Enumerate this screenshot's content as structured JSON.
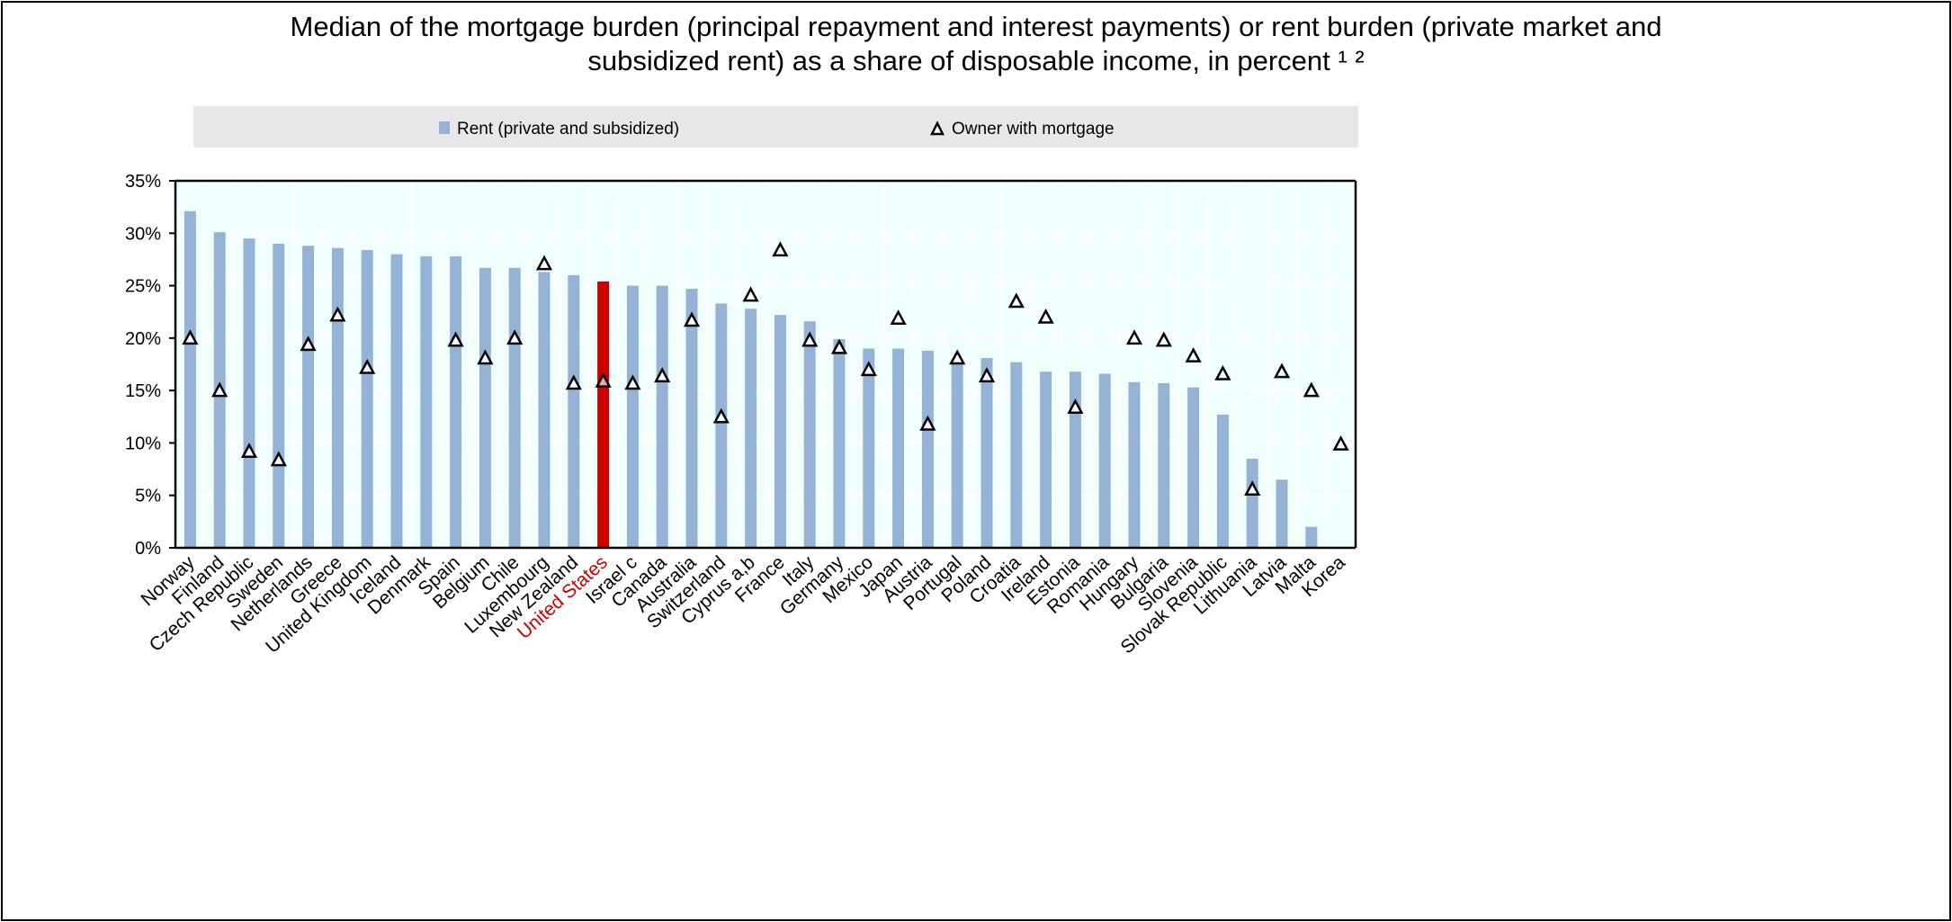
{
  "chart_data": {
    "type": "bar",
    "title_line1": "Median of the mortgage burden (principal repayment and interest payments) or rent burden (private market and",
    "title_line2": "subsidized rent) as a share of disposable income, in percent ¹ ²",
    "xlabel": "",
    "ylabel": "",
    "ylim": [
      0,
      35
    ],
    "yticks": [
      "0%",
      "5%",
      "10%",
      "15%",
      "20%",
      "25%",
      "30%",
      "35%"
    ],
    "grid": true,
    "legend_placement": "top",
    "highlight_category": "United States",
    "colors": {
      "bar": "#95b3d7",
      "highlight": "#cc0000",
      "plot_bg": "#f2ffff",
      "legend_bg": "#e8e8e8",
      "highlight_label": "#cc0000"
    },
    "categories": [
      "Norway",
      "Finland",
      "Czech Republic",
      "Sweden",
      "Netherlands",
      "Greece",
      "United Kingdom",
      "Iceland",
      "Denmark",
      "Spain",
      "Belgium",
      "Chile",
      "Luxembourg",
      "New Zealand",
      "United States",
      "Israel c",
      "Canada",
      "Australia",
      "Switzerland",
      "Cyprus a,b",
      "France",
      "Italy",
      "Germany",
      "Mexico",
      "Japan",
      "Austria",
      "Portugal",
      "Poland",
      "Croatia",
      "Ireland",
      "Estonia",
      "Romania",
      "Hungary",
      "Bulgaria",
      "Slovenia",
      "Slovak Republic",
      "Lithuania",
      "Latvia",
      "Malta",
      "Korea"
    ],
    "series": [
      {
        "name": "Rent (private and subsidized)",
        "marker": "bar",
        "values": [
          32.1,
          30.1,
          29.5,
          29.0,
          28.8,
          28.6,
          28.4,
          28.0,
          27.8,
          27.8,
          26.7,
          26.7,
          26.3,
          26.0,
          25.4,
          25.0,
          25.0,
          24.7,
          23.3,
          22.8,
          22.2,
          21.6,
          19.9,
          19.0,
          19.0,
          18.8,
          18.0,
          18.1,
          17.7,
          16.8,
          16.8,
          16.6,
          15.8,
          15.7,
          15.3,
          12.7,
          8.5,
          6.5,
          2.0,
          null
        ]
      },
      {
        "name": "Owner with mortgage",
        "marker": "triangle",
        "values": [
          20.0,
          15.0,
          9.2,
          8.4,
          19.4,
          22.2,
          17.2,
          null,
          null,
          19.8,
          18.1,
          20.0,
          27.1,
          15.7,
          15.9,
          15.7,
          16.4,
          21.7,
          12.5,
          24.1,
          28.4,
          19.8,
          19.1,
          17.0,
          21.9,
          11.8,
          18.1,
          16.4,
          23.5,
          22.0,
          13.4,
          null,
          20.0,
          19.8,
          18.3,
          16.6,
          5.6,
          16.8,
          15.0,
          9.9
        ]
      }
    ]
  }
}
